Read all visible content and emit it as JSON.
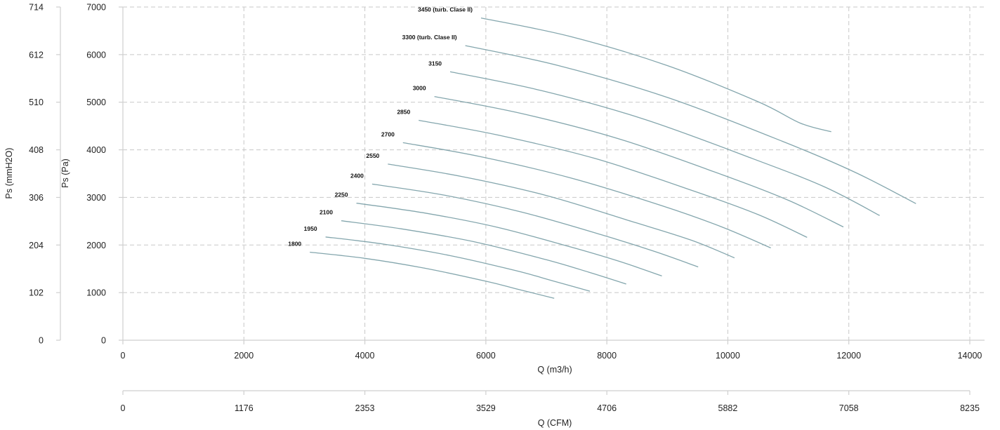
{
  "chart_data": {
    "type": "line",
    "title": "",
    "xlabel": "Q (m3/h)",
    "xlabel_secondary": "Q (CFM)",
    "ylabel": "Ps (Pa)",
    "ylabel_secondary": "Ps (mmH2O)",
    "xlim": [
      0,
      14000
    ],
    "ylim": [
      0,
      7000
    ],
    "grid": true,
    "x_ticks": [
      "0",
      "2000",
      "4000",
      "6000",
      "8000",
      "10000",
      "12000",
      "14000"
    ],
    "y_ticks": [
      "0",
      "1000",
      "2000",
      "3000",
      "4000",
      "5000",
      "6000",
      "7000"
    ],
    "x2_ticks": [
      "0",
      "1176",
      "2353",
      "3529",
      "4706",
      "5882",
      "7058",
      "8235"
    ],
    "y2_ticks": [
      "0",
      "102",
      "204",
      "306",
      "408",
      "510",
      "612",
      "714"
    ],
    "line_color": "#84a6ad",
    "series": [
      {
        "name": "1800",
        "x": [
          3090,
          4000,
          5000,
          6000,
          6500,
          7130
        ],
        "y": [
          1850,
          1720,
          1510,
          1240,
          1080,
          880
        ]
      },
      {
        "name": "1950",
        "x": [
          3350,
          4300,
          5400,
          6500,
          7100,
          7720
        ],
        "y": [
          2170,
          2020,
          1780,
          1460,
          1250,
          1030
        ]
      },
      {
        "name": "2100",
        "x": [
          3610,
          4600,
          5800,
          7000,
          7700,
          8320
        ],
        "y": [
          2510,
          2340,
          2070,
          1690,
          1430,
          1180
        ]
      },
      {
        "name": "2250",
        "x": [
          3860,
          5000,
          6200,
          7400,
          8200,
          8910
        ],
        "y": [
          2880,
          2670,
          2370,
          1960,
          1660,
          1350
        ]
      },
      {
        "name": "2400",
        "x": [
          4120,
          5300,
          6600,
          7900,
          8800,
          9510
        ],
        "y": [
          3280,
          3050,
          2690,
          2220,
          1860,
          1540
        ]
      },
      {
        "name": "2550",
        "x": [
          4380,
          5600,
          7000,
          8400,
          9400,
          10110
        ],
        "y": [
          3700,
          3440,
          3040,
          2500,
          2100,
          1730
        ]
      },
      {
        "name": "2700",
        "x": [
          4630,
          5900,
          7400,
          8900,
          9900,
          10710
        ],
        "y": [
          4150,
          3860,
          3410,
          2830,
          2380,
          1940
        ]
      },
      {
        "name": "2850",
        "x": [
          4890,
          6200,
          7800,
          9400,
          10500,
          11310
        ],
        "y": [
          4620,
          4310,
          3820,
          3150,
          2640,
          2160
        ]
      },
      {
        "name": "3000",
        "x": [
          5150,
          6600,
          8200,
          9900,
          11000,
          11910
        ],
        "y": [
          5120,
          4760,
          4230,
          3480,
          2940,
          2380
        ]
      },
      {
        "name": "3150",
        "x": [
          5410,
          6900,
          8600,
          10400,
          11600,
          12510
        ],
        "y": [
          5640,
          5250,
          4650,
          3820,
          3220,
          2620
        ]
      },
      {
        "name": "3300 (turb. Clase II)",
        "x": [
          5660,
          7200,
          9000,
          10900,
          12100,
          13110
        ],
        "y": [
          6190,
          5770,
          5100,
          4180,
          3530,
          2870
        ]
      },
      {
        "name": "3450 (turb. Clase II)",
        "x": [
          5920,
          7400,
          9000,
          10500,
          11200,
          11710
        ],
        "y": [
          6770,
          6380,
          5770,
          5010,
          4560,
          4380
        ]
      }
    ]
  }
}
